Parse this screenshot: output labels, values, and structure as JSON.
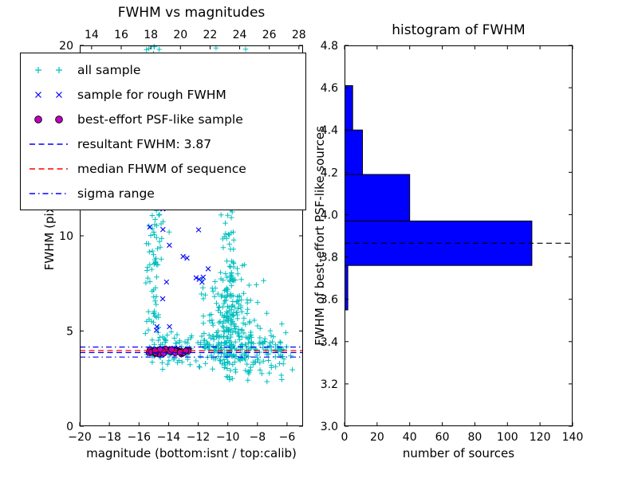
{
  "figure": {
    "background": "#ffffff"
  },
  "chart_data": [
    {
      "type": "scatter",
      "title": "FWHM vs magnitudes",
      "xlabel": "magnitude (bottom:isnt / top:calib)",
      "ylabel": "FWHM (pix)",
      "xlim": [
        -20,
        -4.92
      ],
      "ylim": [
        0,
        20
      ],
      "top_xlim": [
        13.2,
        28.28
      ],
      "xtick_values": [
        -20,
        -18,
        -16,
        -14,
        -12,
        -10,
        -8,
        -6
      ],
      "xtick_labels": [
        "−20",
        "−18",
        "−16",
        "−14",
        "−12",
        "−10",
        "−8",
        "−6"
      ],
      "ytick_values": [
        0,
        5,
        10,
        15,
        20
      ],
      "ytick_labels": [
        "0",
        "5",
        "10",
        "15",
        "20"
      ],
      "top_xtick_values": [
        14,
        16,
        18,
        20,
        22,
        24,
        26,
        28
      ],
      "top_xtick_labels": [
        "14",
        "16",
        "18",
        "20",
        "22",
        "24",
        "26",
        "28"
      ],
      "grid": false,
      "series": [
        {
          "name": "all sample",
          "marker": "plus",
          "color": "#00bfbf",
          "clusters": [
            {
              "count": 120,
              "x": {
                "dist": "gauss",
                "mean": -15.0,
                "sd": 0.3
              },
              "y": {
                "dist": "uniform",
                "min": 3.7,
                "max": 20,
                "pow": 1.3
              }
            },
            {
              "count": 15,
              "x": {
                "dist": "gauss",
                "mean": -14.9,
                "sd": 0.55
              },
              "y": {
                "dist": "uniform",
                "min": 10,
                "max": 19.9
              }
            },
            {
              "count": 250,
              "x": {
                "dist": "gauss",
                "mean": -9.85,
                "sd": 0.85
              },
              "y": {
                "dist": "gauss",
                "mean": 5.0,
                "sd": 1.5,
                "min": 2.3,
                "max": 9.5
              }
            },
            {
              "count": 55,
              "x": {
                "dist": "gauss",
                "mean": -9.9,
                "sd": 0.3
              },
              "y": {
                "dist": "uniform",
                "min": 6,
                "max": 12.6
              }
            },
            {
              "count": 180,
              "x": {
                "dist": "uniform",
                "min": -15.3,
                "max": -6.1,
                "pow": 1.25
              },
              "y": {
                "dist": "gauss",
                "mean": 4.05,
                "sd": 0.5,
                "min": 2.7,
                "max": 5.9
              }
            },
            {
              "count": 28,
              "x": {
                "dist": "uniform",
                "min": -13.6,
                "max": -7.6
              },
              "y": {
                "dist": "uniform",
                "min": 12,
                "max": 19.9
              }
            },
            {
              "count": 28,
              "x": {
                "dist": "uniform",
                "min": -8.6,
                "max": -5.6
              },
              "y": {
                "dist": "gauss",
                "mean": 3.8,
                "sd": 0.9,
                "min": 1.8,
                "max": 6
              }
            }
          ]
        },
        {
          "name": "sample for rough FWHM",
          "marker": "x",
          "color": "#0000ff",
          "clusters": [
            {
              "count": 12,
              "x": {
                "dist": "gauss",
                "mean": -14.75,
                "sd": 0.45
              },
              "y": {
                "dist": "uniform",
                "min": 4.3,
                "max": 12
              }
            },
            {
              "count": 8,
              "x": {
                "dist": "gauss",
                "mean": -12.3,
                "sd": 0.5
              },
              "y": {
                "dist": "uniform",
                "min": 7.4,
                "max": 10.6
              }
            },
            {
              "count": 12,
              "x": {
                "dist": "uniform",
                "min": -15.25,
                "max": -13.1
              },
              "y": {
                "dist": "gauss",
                "mean": 4.05,
                "sd": 0.18
              }
            }
          ]
        },
        {
          "name": "best-effort PSF-like sample",
          "marker": "circle",
          "color": "#bf00bf",
          "edge": "#000000",
          "clusters": [
            {
              "count": 38,
              "x": {
                "dist": "uniform",
                "min": -15.35,
                "max": -12.65
              },
              "y": {
                "dist": "gauss",
                "mean": 3.94,
                "sd": 0.08
              }
            }
          ]
        }
      ],
      "hlines": [
        {
          "label": "resultant FWHM: 3.87",
          "y": 3.87,
          "color": "#0000ff",
          "style": "dashed"
        },
        {
          "label": "median FHWM of sequence",
          "y": 3.97,
          "color": "#ff0000",
          "style": "dashed"
        },
        {
          "label": "sigma range",
          "y": 4.16,
          "color": "#0000ff",
          "style": "dashdot"
        },
        {
          "label": "sigma range",
          "y": 3.63,
          "color": "#0000ff",
          "style": "dashdot"
        }
      ],
      "resultant_fwhm": 3.87,
      "legend": {
        "position": "upper left",
        "items": [
          {
            "label": "all sample",
            "marker": "plus",
            "color": "#00bfbf"
          },
          {
            "label": "sample for rough FWHM",
            "marker": "x",
            "color": "#0000ff"
          },
          {
            "label": "best-effort PSF-like sample",
            "marker": "circle",
            "color": "#bf00bf"
          },
          {
            "label": "resultant FWHM: 3.87",
            "marker": "dashed",
            "color": "#0000ff"
          },
          {
            "label": "median FHWM of sequence",
            "marker": "dashed",
            "color": "#ff0000"
          },
          {
            "label": "sigma range",
            "marker": "dashdot",
            "color": "#0000ff"
          }
        ]
      }
    },
    {
      "type": "bar",
      "orientation": "horizontal",
      "title": "histogram of FWHM",
      "xlabel": "number of sources",
      "ylabel": "FWHM of best-effort PSF-like sources",
      "xlim": [
        0,
        140
      ],
      "ylim": [
        3.0,
        4.8
      ],
      "xtick_values": [
        0,
        20,
        40,
        60,
        80,
        100,
        120,
        140
      ],
      "xtick_labels": [
        "0",
        "20",
        "40",
        "60",
        "80",
        "100",
        "120",
        "140"
      ],
      "ytick_values": [
        3.0,
        3.2,
        3.4,
        3.6,
        3.8,
        4.0,
        4.2,
        4.4,
        4.6,
        4.8
      ],
      "ytick_labels": [
        "3.0",
        "3.2",
        "3.4",
        "3.6",
        "3.8",
        "4.0",
        "4.2",
        "4.4",
        "4.6",
        "4.8"
      ],
      "grid": false,
      "bin_edges": [
        3.55,
        3.76,
        3.97,
        4.19,
        4.4,
        4.61
      ],
      "counts": [
        2,
        115,
        40,
        11,
        5
      ],
      "bar_color": "#0000ff",
      "bar_edge_color": "#000000",
      "median_line": {
        "y": 3.865,
        "color": "#000000",
        "style": "dashed"
      }
    }
  ]
}
